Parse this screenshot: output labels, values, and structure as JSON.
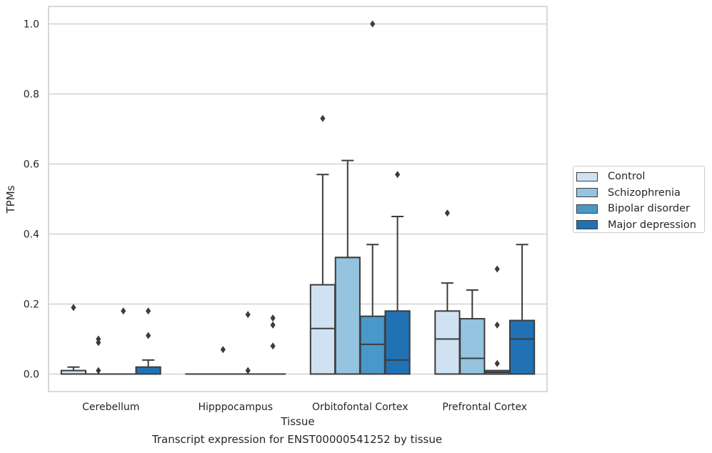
{
  "caption": "Transcript expression for ENST00000541252 by tissue",
  "chart_data": {
    "type": "box",
    "xlabel": "Tissue",
    "ylabel": "TPMs",
    "ylim": [
      -0.05,
      1.05
    ],
    "yticks": [
      0.0,
      0.2,
      0.4,
      0.6,
      0.8,
      1.0
    ],
    "ytick_labels": [
      "0.0",
      "0.2",
      "0.4",
      "0.6",
      "0.8",
      "1.0"
    ],
    "grid": true,
    "legend_position": "right",
    "categories": [
      "Cerebellum",
      "Hipppocampus",
      "Orbitofontal Cortex",
      "Prefrontal Cortex"
    ],
    "series": [
      {
        "name": "Control",
        "color": "#d0e1f2",
        "boxes": [
          {
            "q1": 0.0,
            "median": 0.0,
            "q3": 0.01,
            "whislo": 0.0,
            "whishi": 0.02,
            "fliers": [
              0.19
            ]
          },
          {
            "q1": 0.0,
            "median": 0.0,
            "q3": 0.0,
            "whislo": 0.0,
            "whishi": 0.0,
            "fliers": []
          },
          {
            "q1": 0.0,
            "median": 0.13,
            "q3": 0.255,
            "whislo": 0.0,
            "whishi": 0.57,
            "fliers": [
              0.73
            ]
          },
          {
            "q1": 0.0,
            "median": 0.1,
            "q3": 0.18,
            "whislo": 0.0,
            "whishi": 0.26,
            "fliers": [
              0.46
            ]
          }
        ]
      },
      {
        "name": "Schizophrenia",
        "color": "#94c4df",
        "boxes": [
          {
            "q1": 0.0,
            "median": 0.0,
            "q3": 0.0,
            "whislo": 0.0,
            "whishi": 0.0,
            "fliers": [
              0.1,
              0.09,
              0.01
            ]
          },
          {
            "q1": 0.0,
            "median": 0.0,
            "q3": 0.0,
            "whislo": 0.0,
            "whishi": 0.0,
            "fliers": [
              0.07
            ]
          },
          {
            "q1": 0.0,
            "median": 0.333,
            "q3": 0.333,
            "whislo": 0.0,
            "whishi": 0.61,
            "fliers": []
          },
          {
            "q1": 0.0,
            "median": 0.045,
            "q3": 0.158,
            "whislo": 0.0,
            "whishi": 0.24,
            "fliers": []
          }
        ]
      },
      {
        "name": "Bipolar disorder",
        "color": "#4a98c9",
        "boxes": [
          {
            "q1": 0.0,
            "median": 0.0,
            "q3": 0.0,
            "whislo": 0.0,
            "whishi": 0.0,
            "fliers": [
              0.18
            ]
          },
          {
            "q1": 0.0,
            "median": 0.0,
            "q3": 0.0,
            "whislo": 0.0,
            "whishi": 0.0,
            "fliers": [
              0.17,
              0.01
            ]
          },
          {
            "q1": 0.0,
            "median": 0.085,
            "q3": 0.165,
            "whislo": 0.0,
            "whishi": 0.37,
            "fliers": [
              1.0
            ]
          },
          {
            "q1": 0.0,
            "median": 0.005,
            "q3": 0.01,
            "whislo": 0.0,
            "whishi": 0.01,
            "fliers": [
              0.3,
              0.14,
              0.03
            ]
          }
        ]
      },
      {
        "name": "Major depression",
        "color": "#2171b5",
        "boxes": [
          {
            "q1": 0.0,
            "median": 0.0,
            "q3": 0.02,
            "whislo": 0.0,
            "whishi": 0.04,
            "fliers": [
              0.18,
              0.11
            ]
          },
          {
            "q1": 0.0,
            "median": 0.0,
            "q3": 0.0,
            "whislo": 0.0,
            "whishi": 0.0,
            "fliers": [
              0.16,
              0.14,
              0.08
            ]
          },
          {
            "q1": 0.0,
            "median": 0.04,
            "q3": 0.18,
            "whislo": 0.0,
            "whishi": 0.45,
            "fliers": [
              0.57
            ]
          },
          {
            "q1": 0.0,
            "median": 0.1,
            "q3": 0.153,
            "whislo": 0.0,
            "whishi": 0.37,
            "fliers": []
          }
        ]
      }
    ]
  }
}
